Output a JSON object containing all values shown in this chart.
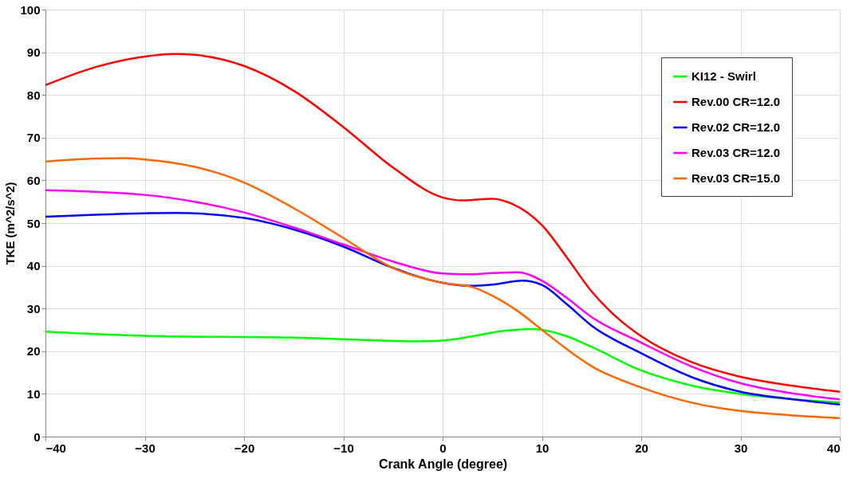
{
  "chart_data": {
    "type": "line",
    "xlabel": "Crank Angle (degree)",
    "ylabel": "TKE (m^2/s^2)",
    "xlim": [
      -40,
      40
    ],
    "xticks": [
      -40,
      -30,
      -20,
      -10,
      0,
      10,
      20,
      30,
      40
    ],
    "ylim": [
      0,
      100
    ],
    "yticks": [
      0,
      10,
      20,
      30,
      40,
      50,
      60,
      70,
      80,
      90,
      100
    ],
    "grid": true,
    "legend": "top right",
    "marker": "none",
    "line_style": "solid",
    "series": [
      {
        "name": "KI12 - Swirl",
        "color": "#00ff00",
        "x": [
          -40,
          -30,
          -20,
          -15,
          -10,
          -5,
          -3,
          0,
          3,
          6,
          9,
          10,
          12.5,
          15,
          20,
          25,
          30,
          35,
          40
        ],
        "values": [
          24.6,
          23.6,
          23.3,
          23.2,
          22.8,
          22.4,
          22.3,
          22.5,
          23.5,
          24.7,
          25.2,
          25,
          23.5,
          21,
          15.5,
          12,
          10,
          8.8,
          8
        ]
      },
      {
        "name": "Rev.00 CR=12.0",
        "color": "#ff0000",
        "x": [
          -40,
          -35,
          -30,
          -27,
          -25,
          -20,
          -15,
          -10,
          -5,
          0,
          2,
          5,
          7,
          10,
          12.5,
          15,
          17.5,
          20,
          25,
          30,
          35,
          40
        ],
        "values": [
          82.3,
          86.5,
          89,
          89.6,
          89.4,
          86.8,
          81,
          72.5,
          63,
          56,
          55.3,
          55.7,
          54.5,
          49.5,
          42,
          34,
          28,
          23.5,
          17.5,
          14,
          12,
          10.5
        ]
      },
      {
        "name": "Rev.02 CR=12.0",
        "color": "#0000ff",
        "x": [
          -40,
          -30,
          -27,
          -20,
          -15,
          -10,
          -5,
          0,
          2.5,
          5,
          8,
          10,
          12.5,
          15,
          20,
          25,
          30,
          35,
          40
        ],
        "values": [
          51.5,
          52.3,
          52.4,
          51.2,
          48.5,
          44.5,
          39.5,
          36,
          35.3,
          35.6,
          36.5,
          35.5,
          31,
          26,
          19.5,
          14,
          10.5,
          8.8,
          7.5
        ]
      },
      {
        "name": "Rev.03 CR=12.0",
        "color": "#ff00ff",
        "x": [
          -40,
          -30,
          -25,
          -20,
          -15,
          -10,
          -5,
          0,
          2.5,
          5,
          7.5,
          10,
          12.5,
          15,
          20,
          25,
          30,
          35,
          40
        ],
        "values": [
          57.7,
          56.6,
          55,
          52.5,
          49,
          45,
          41,
          38.2,
          38,
          38.3,
          38.5,
          36.5,
          32.5,
          28,
          22,
          16.5,
          12.5,
          10.2,
          8.7
        ]
      },
      {
        "name": "Rev.03 CR=15.0",
        "color": "#ff6600",
        "x": [
          -40,
          -35,
          -32,
          -30,
          -25,
          -20,
          -15,
          -10,
          -5,
          0,
          3,
          5,
          7.5,
          10,
          12.5,
          15,
          20,
          25,
          30,
          35,
          40
        ],
        "values": [
          64.4,
          65.1,
          65.2,
          64.9,
          63.2,
          59.5,
          53.5,
          46.5,
          39.5,
          36,
          35,
          33,
          29.5,
          25,
          20.5,
          16.5,
          11.5,
          8,
          6,
          5,
          4.3
        ]
      }
    ]
  }
}
